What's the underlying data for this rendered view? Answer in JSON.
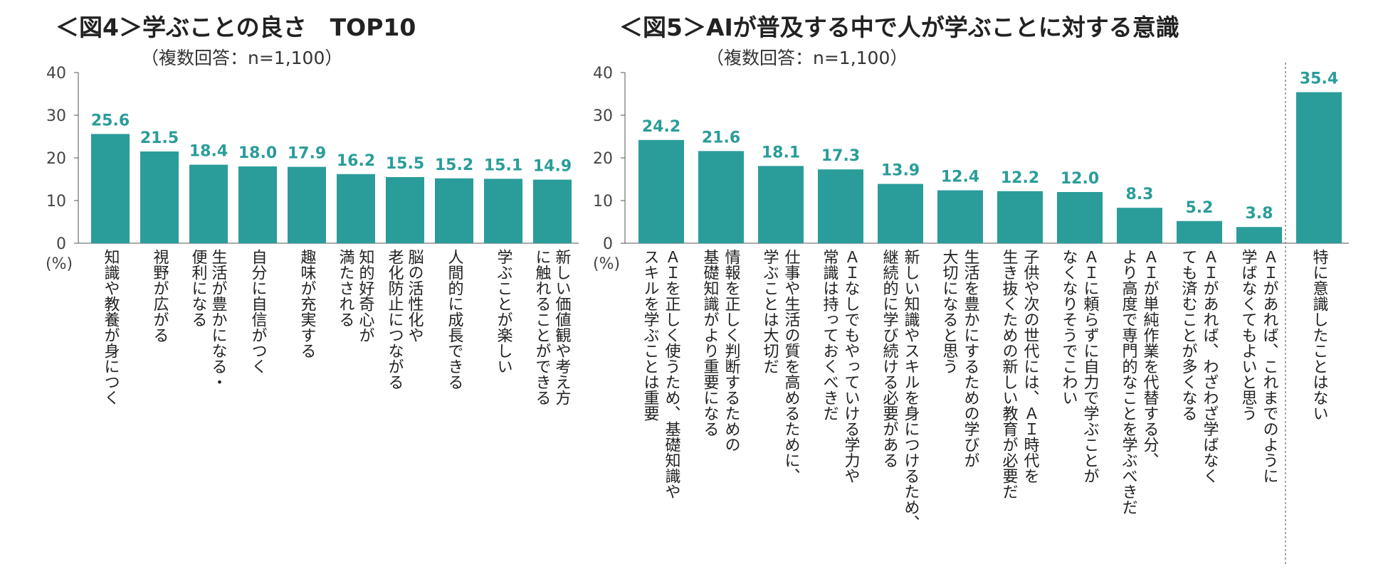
{
  "colors": {
    "bar": "#2a9d9a",
    "axis": "#555555",
    "value_label": "#2a9d9a"
  },
  "chart_data": [
    {
      "type": "bar",
      "title": "＜図4＞学ぶことの良さ　TOP10",
      "subtitle": "（複数回答：n=1,100）",
      "ylabel": "(%)",
      "ylim": [
        0,
        40
      ],
      "yticks": [
        0,
        10,
        20,
        30,
        40
      ],
      "categories": [
        [
          "知識や教養が身につく"
        ],
        [
          "視野が広がる"
        ],
        [
          "生活が豊かになる・",
          "便利になる"
        ],
        [
          "自分に自信がつく"
        ],
        [
          "趣味が充実する"
        ],
        [
          "知的好奇心が",
          "満たされる"
        ],
        [
          "脳の活性化や",
          "老化防止につながる"
        ],
        [
          "人間的に成長できる"
        ],
        [
          "学ぶことが楽しい"
        ],
        [
          "新しい価値観や考え方",
          "に触れることができる"
        ]
      ],
      "values": [
        25.6,
        21.5,
        18.4,
        18.0,
        17.9,
        16.2,
        15.5,
        15.2,
        15.1,
        14.9
      ]
    },
    {
      "type": "bar",
      "title": "＜図5＞AIが普及する中で人が学ぶことに対する意識",
      "subtitle": "（複数回答：n=1,100）",
      "ylabel": "(%)",
      "ylim": [
        0,
        40
      ],
      "yticks": [
        0,
        10,
        20,
        30,
        40
      ],
      "categories": [
        [
          "ＡＩを正しく使うため、基礎知識や",
          "スキルを学ぶことは重要"
        ],
        [
          "情報を正しく判断するための",
          "基礎知識がより重要になる"
        ],
        [
          "仕事や生活の質を高めるために、",
          "学ぶことは大切だ"
        ],
        [
          "ＡＩなしでもやっていける学力や",
          "常識は持っておくべきだ"
        ],
        [
          "新しい知識やスキルを身につけるため、",
          "継続的に学び続ける必要がある"
        ],
        [
          "生活を豊かにするための学びが",
          "大切になると思う"
        ],
        [
          "子供や次の世代には、ＡＩ時代を",
          "生き抜くための新しい教育が必要だ"
        ],
        [
          "ＡＩに頼らずに自力で学ぶことが",
          "なくなりそうでこわい"
        ],
        [
          "ＡＩが単純作業を代替する分、",
          "より高度で専門的なことを学ぶべきだ"
        ],
        [
          "ＡＩがあれば、わざわざ学ばなく",
          "ても済むことが多くなる"
        ],
        [
          "ＡＩがあれば、これまでのように",
          "学ばなくてもよいと思う"
        ],
        [
          "特に意識したことはない"
        ]
      ],
      "values": [
        24.2,
        21.6,
        18.1,
        17.3,
        13.9,
        12.4,
        12.2,
        12.0,
        8.3,
        5.2,
        3.8,
        35.4
      ]
    }
  ]
}
